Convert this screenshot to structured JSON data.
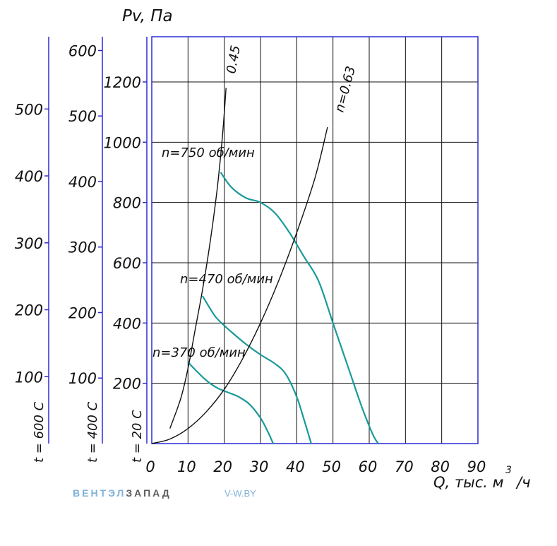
{
  "chart_data": {
    "type": "line",
    "ylabel": "Pv, Па",
    "xlabel": "Q, тыс. м³/ч",
    "xlabel_parts": {
      "main": "Q, тыс. м",
      "sup": "3",
      "tail": "/ч"
    },
    "x_ticks": [
      "0",
      "10",
      "20",
      "30",
      "40",
      "50",
      "60",
      "70",
      "80",
      "90"
    ],
    "xlim": [
      0,
      90
    ],
    "ylim": [
      0,
      1350
    ],
    "grid": true,
    "y_axes": [
      {
        "temp_label": "t = 20 C",
        "ticks": [
          "200",
          "400",
          "600",
          "800",
          "1000",
          "1200"
        ],
        "values": [
          200,
          400,
          600,
          800,
          1000,
          1200
        ],
        "max": 1350
      },
      {
        "temp_label": "t = 400 C",
        "ticks": [
          "100",
          "200",
          "300",
          "400",
          "500",
          "600"
        ],
        "values": [
          100,
          200,
          300,
          400,
          500,
          600
        ],
        "max": 621
      },
      {
        "temp_label": "t = 600 C",
        "ticks": [
          "100",
          "200",
          "300",
          "400",
          "500"
        ],
        "values": [
          100,
          200,
          300,
          400,
          500
        ],
        "max": 608
      }
    ],
    "series": [
      {
        "name": "n=750 об/мин",
        "color": "#1a9a9a",
        "x": [
          19,
          22,
          26,
          30,
          34,
          38,
          42,
          46,
          50,
          54,
          58,
          61,
          62.5
        ],
        "y": [
          900,
          850,
          815,
          800,
          765,
          700,
          620,
          540,
          400,
          260,
          120,
          30,
          0
        ]
      },
      {
        "name": "n=470 об/мин",
        "color": "#1a9a9a",
        "x": [
          14,
          16,
          18,
          22,
          26,
          30,
          34,
          37,
          40,
          42,
          44
        ],
        "y": [
          490,
          450,
          415,
          370,
          330,
          295,
          265,
          230,
          155,
          80,
          0
        ]
      },
      {
        "name": "n=370 об/мин",
        "color": "#1a9a9a",
        "x": [
          10,
          12,
          15,
          18,
          21,
          24,
          27,
          30,
          32,
          33.5
        ],
        "y": [
          270,
          245,
          210,
          185,
          170,
          155,
          130,
          85,
          40,
          0
        ]
      },
      {
        "name": "0.45",
        "color": "#111111",
        "x": [
          5,
          8,
          10,
          12,
          14,
          16,
          18,
          19.5,
          20.5
        ],
        "y": [
          50,
          150,
          250,
          380,
          510,
          660,
          840,
          1020,
          1180
        ]
      },
      {
        "name": "n=0.63",
        "color": "#111111",
        "x": [
          0,
          5,
          10,
          15,
          20,
          25,
          30,
          35,
          40,
          45,
          48.5
        ],
        "y": [
          0,
          15,
          50,
          105,
          180,
          280,
          400,
          540,
          700,
          880,
          1050
        ]
      }
    ],
    "curve_labels": [
      {
        "text": "n=750 об/мин",
        "series": 0
      },
      {
        "text": "n=470 об/мин",
        "series": 1
      },
      {
        "text": "n=370 об/мин",
        "series": 2
      },
      {
        "text": "0.45",
        "series": 3
      },
      {
        "text": "n=0.63",
        "series": 4
      }
    ]
  },
  "logo": {
    "part1": "ВЕНТЭЛ",
    "part2": "ЗАПАД"
  },
  "site": "V-W.BY"
}
